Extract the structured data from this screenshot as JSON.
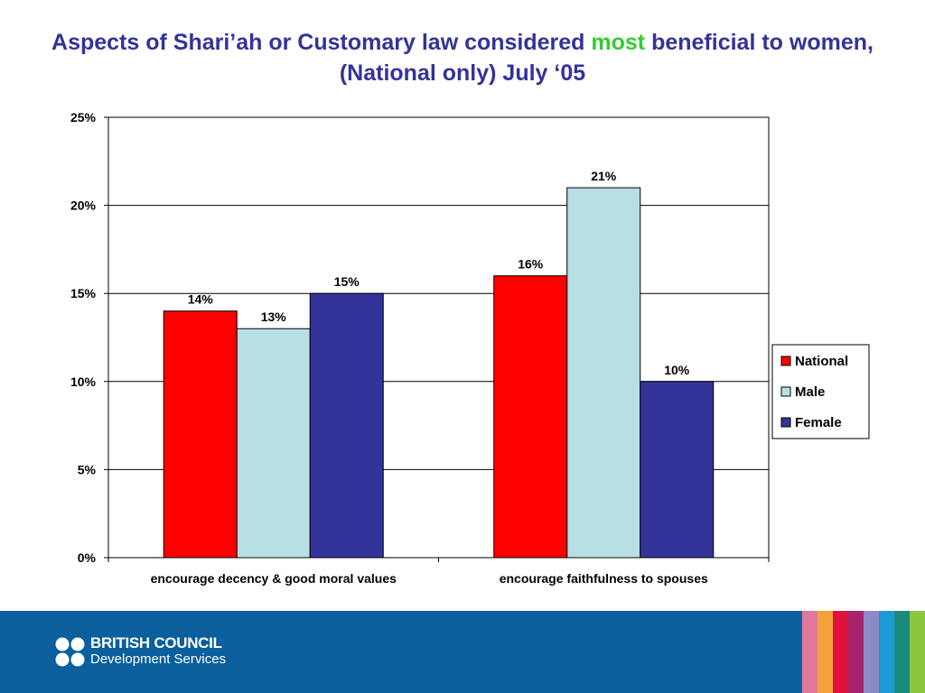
{
  "slide": {
    "title_pre": "Aspects of Shari’ah or Customary law considered ",
    "title_highlight": "most",
    "title_post": " beneficial to women, (National only) July ‘05",
    "highlight_color": "#33cc33",
    "title_color": "#333399"
  },
  "chart_data": {
    "type": "bar",
    "categories": [
      "encourage decency & good moral values",
      "encourage faithfulness to spouses"
    ],
    "series": [
      {
        "name": "National",
        "values": [
          14,
          16
        ],
        "labels": [
          "14%",
          "16%"
        ],
        "color": "#ff0000"
      },
      {
        "name": "Male",
        "values": [
          13,
          21
        ],
        "labels": [
          "13%",
          "21%"
        ],
        "color": "#b8dfe3"
      },
      {
        "name": "Female",
        "values": [
          15,
          10
        ],
        "labels": [
          "15%",
          "10%"
        ],
        "color": "#333399"
      }
    ],
    "yticks": [
      "0%",
      "5%",
      "10%",
      "15%",
      "20%",
      "25%"
    ],
    "ylim": [
      0,
      25
    ],
    "grid": true,
    "legend_position": "right"
  },
  "footer": {
    "logo_line1": "BRITISH COUNCIL",
    "logo_line2": "Development Services",
    "background": "#0a5f9c",
    "stripe_colors": [
      "#e0789d",
      "#f3a13b",
      "#e0113d",
      "#a8246f",
      "#8c89c4",
      "#1c9ad6",
      "#1a8a7c",
      "#8cc63f"
    ]
  }
}
